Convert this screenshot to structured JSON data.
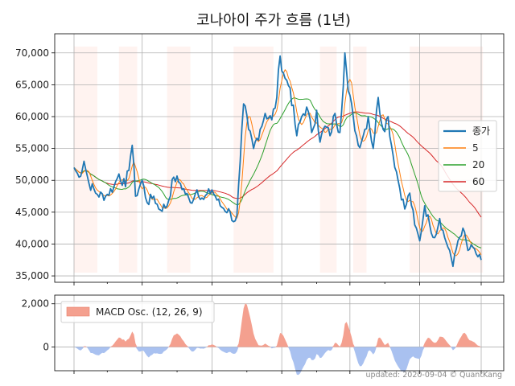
{
  "title": "코나아이 주가 흐름 (1년)",
  "footer": "updated: 2020-09-04 © QuantKang",
  "chart_data": [
    {
      "type": "line",
      "title": "코나아이 주가 흐름 (1년)",
      "n_days": 246,
      "ylim": [
        34000,
        73000
      ],
      "yticks": [
        35000,
        40000,
        45000,
        50000,
        55000,
        60000,
        65000,
        70000
      ],
      "ytick_labels": [
        "35,000",
        "40,000",
        "45,000",
        "50,000",
        "55,000",
        "60,000",
        "65,000",
        "70,000"
      ],
      "grid": true,
      "legend_position": "center-right",
      "shaded_day_ranges": [
        [
          0,
          14
        ],
        [
          27,
          38
        ],
        [
          56,
          70
        ],
        [
          96,
          120
        ],
        [
          148,
          158
        ],
        [
          168,
          176
        ],
        [
          202,
          222
        ],
        [
          222,
          246
        ]
      ],
      "shade_color": "#fff3f0",
      "price_anchors": [
        [
          0,
          52000
        ],
        [
          3,
          50500
        ],
        [
          6,
          53000
        ],
        [
          9,
          49500
        ],
        [
          14,
          47800
        ],
        [
          19,
          47500
        ],
        [
          24,
          49000
        ],
        [
          27,
          51000
        ],
        [
          31,
          49000
        ],
        [
          35,
          55500
        ],
        [
          37,
          47500
        ],
        [
          41,
          50000
        ],
        [
          44,
          46500
        ],
        [
          48,
          47500
        ],
        [
          51,
          45500
        ],
        [
          56,
          46000
        ],
        [
          60,
          50500
        ],
        [
          64,
          49500
        ],
        [
          70,
          46500
        ],
        [
          74,
          48500
        ],
        [
          78,
          47000
        ],
        [
          83,
          48500
        ],
        [
          88,
          46000
        ],
        [
          94,
          45000
        ],
        [
          96,
          43500
        ],
        [
          98,
          44500
        ],
        [
          100,
          53000
        ],
        [
          102,
          62000
        ],
        [
          105,
          58000
        ],
        [
          108,
          55000
        ],
        [
          112,
          58000
        ],
        [
          115,
          60500
        ],
        [
          119,
          59500
        ],
        [
          122,
          63000
        ],
        [
          124,
          69500
        ],
        [
          127,
          66000
        ],
        [
          130,
          64500
        ],
        [
          134,
          57000
        ],
        [
          137,
          60000
        ],
        [
          140,
          61500
        ],
        [
          143,
          57500
        ],
        [
          146,
          61000
        ],
        [
          148,
          56000
        ],
        [
          151,
          58500
        ],
        [
          154,
          57000
        ],
        [
          157,
          60500
        ],
        [
          160,
          57500
        ],
        [
          163,
          70000
        ],
        [
          165,
          64000
        ],
        [
          168,
          60000
        ],
        [
          171,
          55500
        ],
        [
          174,
          57000
        ],
        [
          177,
          60000
        ],
        [
          180,
          55000
        ],
        [
          183,
          63000
        ],
        [
          186,
          58000
        ],
        [
          189,
          60000
        ],
        [
          191,
          55500
        ],
        [
          195,
          50000
        ],
        [
          199,
          45500
        ],
        [
          202,
          48000
        ],
        [
          205,
          43000
        ],
        [
          208,
          40500
        ],
        [
          211,
          46000
        ],
        [
          214,
          43000
        ],
        [
          217,
          41000
        ],
        [
          220,
          44000
        ],
        [
          223,
          41000
        ],
        [
          226,
          39000
        ],
        [
          228,
          36500
        ],
        [
          231,
          40500
        ],
        [
          234,
          42500
        ],
        [
          237,
          39000
        ],
        [
          240,
          39500
        ],
        [
          243,
          38000
        ],
        [
          245,
          37500
        ]
      ],
      "series": [
        {
          "name": "종가",
          "color": "#1f77b4",
          "width": 1.8
        },
        {
          "name": "5",
          "color": "#ff7f0e",
          "width": 1.0,
          "window": 5
        },
        {
          "name": "20",
          "color": "#2ca02c",
          "width": 1.0,
          "window": 20
        },
        {
          "name": "60",
          "color": "#d62728",
          "width": 1.0,
          "window": 60
        }
      ]
    },
    {
      "type": "area",
      "ylim": [
        -1100,
        2400
      ],
      "yticks": [
        0,
        2000
      ],
      "ytick_labels": [
        "0",
        "2,000"
      ],
      "grid": true,
      "legend_position": "top-left",
      "series": [
        {
          "name": "MACD Osc. (12, 26, 9)",
          "positive_color": "#f4a08f",
          "negative_color": "#a9c1f0"
        }
      ]
    }
  ]
}
